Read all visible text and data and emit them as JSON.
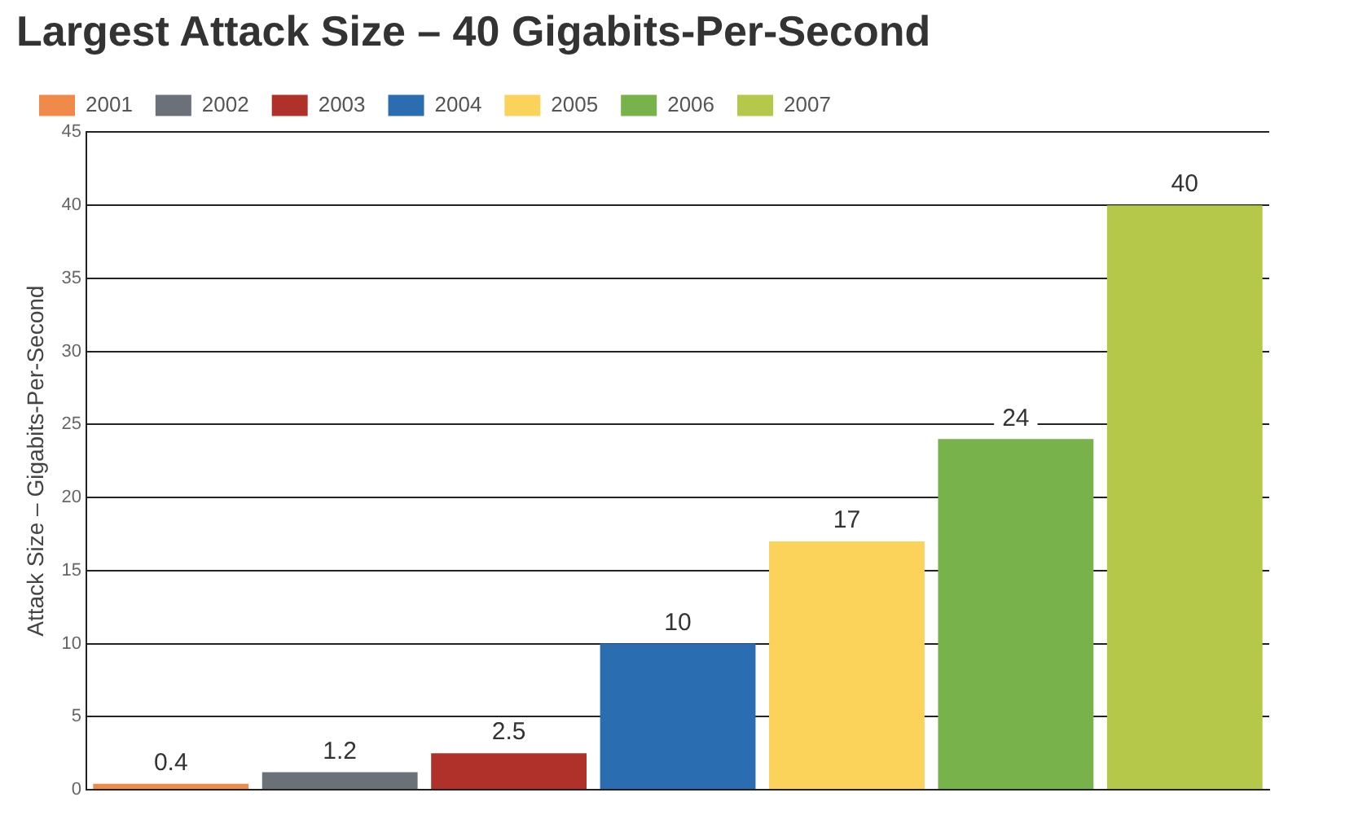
{
  "chart_data": {
    "type": "bar",
    "title": "Largest Attack Size – 40 Gigabits-Per-Second",
    "ylabel": "Attack Size – Gigabits-Per-Second",
    "categories": [
      null,
      null,
      null,
      null,
      null,
      null,
      null
    ],
    "series": [
      {
        "name": "2001",
        "color": "#f08a4b",
        "values": [
          0.4,
          null,
          null,
          null,
          null,
          null,
          null
        ]
      },
      {
        "name": "2002",
        "color": "#6b7178",
        "values": [
          null,
          1.2,
          null,
          null,
          null,
          null,
          null
        ]
      },
      {
        "name": "2003",
        "color": "#b0302a",
        "values": [
          null,
          null,
          2.5,
          null,
          null,
          null,
          null
        ]
      },
      {
        "name": "2004",
        "color": "#2a6db0",
        "values": [
          null,
          null,
          null,
          10,
          null,
          null,
          null
        ]
      },
      {
        "name": "2005",
        "color": "#fbd35a",
        "values": [
          null,
          null,
          null,
          null,
          17,
          null,
          null
        ]
      },
      {
        "name": "2006",
        "color": "#78b24a",
        "values": [
          null,
          null,
          null,
          null,
          null,
          24,
          null
        ]
      },
      {
        "name": "2007",
        "color": "#b5c84a",
        "values": [
          null,
          null,
          null,
          null,
          null,
          null,
          40
        ]
      }
    ],
    "ylim": [
      0,
      45
    ],
    "yticks": [
      0,
      5,
      10,
      15,
      20,
      25,
      30,
      35,
      40,
      45
    ],
    "grid": "y",
    "legend": "top left",
    "data_labels": true
  }
}
